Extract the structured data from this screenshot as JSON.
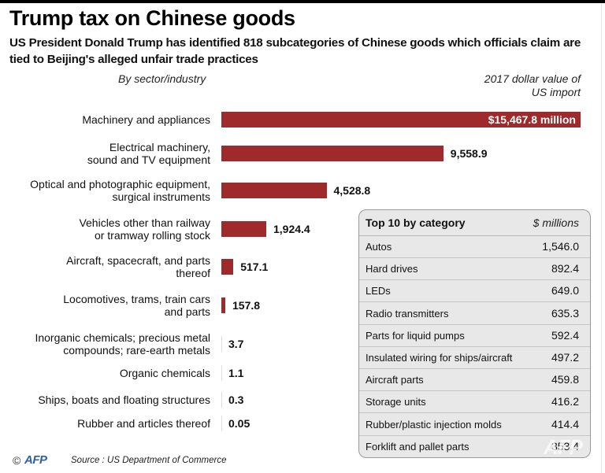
{
  "header": {
    "title": "Trump tax on Chinese goods",
    "subtitle": "US President Donald Trump has identified 818 subcategories of Chinese goods which officials claim are tied to Beijing's alleged unfair trade practices"
  },
  "chart_data": {
    "type": "bar",
    "orientation": "horizontal",
    "title": "Trump tax on Chinese goods",
    "subtitle": "US President Donald Trump has identified 818 subcategories of Chinese goods which officials claim are tied to Beijing's alleged unfair trade practices",
    "xlabel": "2017 dollar value of US import",
    "ylabel": "By sector/industry",
    "unit": "$ million",
    "categories": [
      "Machinery and appliances",
      "Electrical machinery,\nsound and TV equipment",
      "Optical and photographic equipment,\nsurgical instruments",
      "Vehicles other than railway\nor tramway rolling stock",
      "Aircraft, spacecraft, and parts\nthereof",
      "Locomotives, trams, train cars\nand parts",
      "Inorganic chemicals; precious metal\ncompounds; rare-earth metals",
      "Organic chemicals",
      "Ships, boats and floating structures",
      "Rubber and articles thereof"
    ],
    "values": [
      15467.8,
      9558.9,
      4528.8,
      1924.4,
      517.1,
      157.8,
      3.7,
      1.1,
      0.3,
      0.05
    ],
    "value_labels": [
      "$15,467.8 million",
      "9,558.9",
      "4,528.8",
      "1,924.4",
      "517.1",
      "157.8",
      "3.7",
      "1.1",
      "0.3",
      "0.05"
    ],
    "bar_color": "#9e2a2b",
    "grid": false,
    "legend": "none",
    "inset_table": {
      "title": "Top 10 by category",
      "unit_label": "$ millions",
      "rows": [
        {
          "name": "Autos",
          "value": "1,546.0"
        },
        {
          "name": "Hard drives",
          "value": "892.4"
        },
        {
          "name": "LEDs",
          "value": "649.0"
        },
        {
          "name": "Radio transmitters",
          "value": "635.3"
        },
        {
          "name": "Parts for liquid pumps",
          "value": "592.4"
        },
        {
          "name": "Insulated wiring for ships/aircraft",
          "value": "497.2"
        },
        {
          "name": "Aircraft parts",
          "value": "459.8"
        },
        {
          "name": "Storage units",
          "value": "416.2"
        },
        {
          "name": "Rubber/plastic injection molds",
          "value": "414.4"
        },
        {
          "name": "Forklift and pallet parts",
          "value": "353.4"
        }
      ]
    }
  },
  "axis_headers": {
    "left": "By sector/industry",
    "right_line1": "2017 dollar value of",
    "right_line2": "US import"
  },
  "footer": {
    "copyright": "©",
    "logo": "AFP",
    "source": "Source : US Department of Commerce",
    "watermark": "AFP"
  },
  "colors": {
    "bar": "#9e2a2b",
    "afp_blue": "#2e5fa8",
    "table_bg": "#e8e8e8"
  }
}
